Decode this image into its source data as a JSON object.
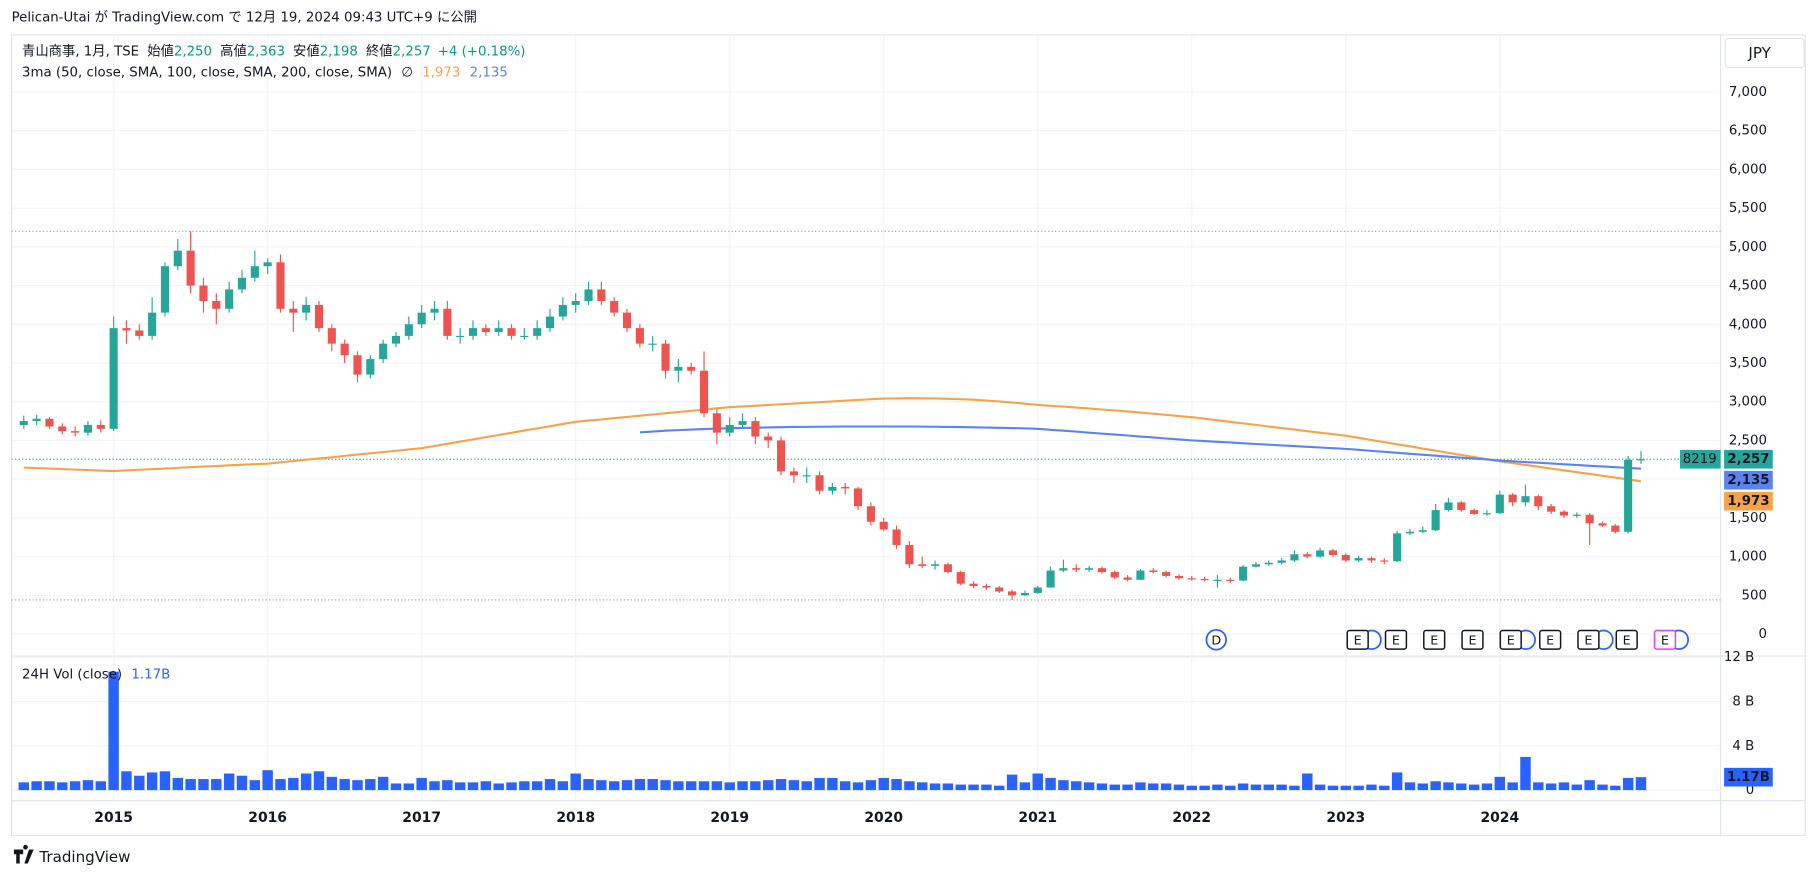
{
  "header": "Pelican-Utai が TradingView.com で 12月 19, 2024 09:43 UTC+9 に公開",
  "footer": "TradingView",
  "chart_data": [
    {
      "type": "candlestick",
      "symbol": "青山商事, 1月, TSE",
      "ohlc_names": [
        "始値",
        "高値",
        "安値",
        "終値"
      ],
      "ohlc_value_labels": [
        "2,250",
        "2,363",
        "2,198",
        "2,257"
      ],
      "change": "+4 (+0.18%)",
      "currency": "JPY",
      "badge_prefix": "8219",
      "indicator": "3ma (50, close, SMA, 100, close, SMA, 200, close, SMA)",
      "ma_empty_label": "∅",
      "events": [
        "D",
        "E",
        "E",
        "E",
        "E",
        "E",
        "E",
        "E",
        "E",
        "E"
      ],
      "up_color": "#26a69a",
      "down_color": "#ef5350",
      "categories": [
        null,
        null,
        null,
        null,
        null,
        null,
        null,
        "2015",
        null,
        null,
        null,
        null,
        null,
        null,
        null,
        null,
        null,
        null,
        null,
        "2016",
        null,
        null,
        null,
        null,
        null,
        null,
        null,
        null,
        null,
        null,
        null,
        "2017",
        null,
        null,
        null,
        null,
        null,
        null,
        null,
        null,
        null,
        null,
        null,
        "2018",
        null,
        null,
        null,
        null,
        null,
        null,
        null,
        null,
        null,
        null,
        null,
        "2019",
        null,
        null,
        null,
        null,
        null,
        null,
        null,
        null,
        null,
        null,
        null,
        "2020",
        null,
        null,
        null,
        null,
        null,
        null,
        null,
        null,
        null,
        null,
        null,
        "2021",
        null,
        null,
        null,
        null,
        null,
        null,
        null,
        null,
        null,
        null,
        null,
        "2022",
        null,
        null,
        null,
        null,
        null,
        null,
        null,
        null,
        null,
        null,
        null,
        "2023",
        null,
        null,
        null,
        null,
        null,
        null,
        null,
        null,
        null,
        null,
        null,
        "2024",
        null,
        null,
        null,
        null,
        null,
        null,
        null,
        null,
        null,
        null,
        null
      ],
      "open": [
        2700,
        2750,
        2780,
        2680,
        2620,
        2600,
        2700,
        2650,
        3950,
        3920,
        3850,
        4150,
        4750,
        4950,
        4500,
        4300,
        4200,
        4450,
        4600,
        4750,
        4800,
        4200,
        4150,
        4250,
        3950,
        3750,
        3600,
        3350,
        3550,
        3750,
        3850,
        4000,
        4150,
        4200,
        3850,
        3850,
        3950,
        3900,
        3950,
        3850,
        3850,
        3950,
        4100,
        4250,
        4300,
        4450,
        4300,
        4150,
        3950,
        3750,
        3750,
        3400,
        3450,
        3400,
        2850,
        2600,
        2700,
        2750,
        2550,
        2500,
        2100,
        2050,
        2050,
        1850,
        1900,
        1880,
        1650,
        1450,
        1350,
        1150,
        900,
        880,
        900,
        800,
        650,
        620,
        600,
        550,
        500,
        530,
        600,
        820,
        850,
        830,
        850,
        800,
        730,
        700,
        820,
        800,
        750,
        720,
        710,
        700,
        700,
        690,
        870,
        900,
        920,
        950,
        1030,
        1000,
        1080,
        1020,
        950,
        980,
        950,
        940,
        1300,
        1320,
        1340,
        1600,
        1700,
        1600,
        1550,
        1560,
        1800,
        1700,
        1780,
        1650,
        1580,
        1530,
        1540,
        1430,
        1400,
        1320,
        2250
      ],
      "high": [
        2820,
        2830,
        2800,
        2720,
        2680,
        2750,
        2760,
        4100,
        4050,
        4000,
        4350,
        4800,
        5100,
        5200,
        4600,
        4400,
        4550,
        4700,
        4950,
        4850,
        4900,
        4300,
        4350,
        4300,
        4000,
        3800,
        3650,
        3600,
        3800,
        3900,
        4100,
        4250,
        4300,
        4300,
        3950,
        4050,
        4000,
        4050,
        4000,
        3950,
        4050,
        4200,
        4350,
        4400,
        4550,
        4550,
        4350,
        4200,
        4000,
        3850,
        3800,
        3550,
        3500,
        3650,
        2900,
        2800,
        2850,
        2800,
        2600,
        2550,
        2150,
        2150,
        2100,
        1950,
        1950,
        1900,
        1700,
        1500,
        1400,
        1200,
        1000,
        950,
        920,
        820,
        680,
        650,
        620,
        570,
        560,
        620,
        870,
        960,
        900,
        880,
        870,
        820,
        760,
        840,
        850,
        820,
        770,
        750,
        740,
        760,
        730,
        890,
        930,
        950,
        980,
        1080,
        1060,
        1110,
        1100,
        1040,
        1010,
        1000,
        980,
        1330,
        1360,
        1390,
        1680,
        1760,
        1720,
        1620,
        1600,
        1850,
        1820,
        1930,
        1800,
        1680,
        1600,
        1570,
        1560,
        1450,
        1420,
        2300,
        2363
      ],
      "low": [
        2650,
        2700,
        2650,
        2580,
        2550,
        2560,
        2600,
        2620,
        3750,
        3800,
        3800,
        4100,
        4700,
        4400,
        4150,
        4000,
        4150,
        4400,
        4550,
        4650,
        4150,
        3900,
        4050,
        3900,
        3650,
        3500,
        3250,
        3300,
        3500,
        3700,
        3800,
        3950,
        4050,
        3800,
        3750,
        3800,
        3850,
        3850,
        3800,
        3800,
        3800,
        3900,
        4050,
        4150,
        4250,
        4250,
        4100,
        3900,
        3700,
        3650,
        3300,
        3250,
        3350,
        2800,
        2450,
        2550,
        2650,
        2450,
        2400,
        2050,
        1950,
        1950,
        1800,
        1800,
        1800,
        1600,
        1400,
        1330,
        1100,
        850,
        850,
        830,
        780,
        630,
        590,
        570,
        530,
        440,
        490,
        520,
        600,
        800,
        800,
        800,
        780,
        710,
        680,
        700,
        780,
        730,
        700,
        690,
        680,
        600,
        660,
        680,
        860,
        880,
        900,
        930,
        980,
        980,
        1000,
        930,
        930,
        920,
        900,
        930,
        1280,
        1300,
        1330,
        1580,
        1580,
        1540,
        1530,
        1550,
        1650,
        1650,
        1600,
        1550,
        1500,
        1500,
        1150,
        1380,
        1300,
        1300,
        2198
      ],
      "close": [
        2750,
        2780,
        2680,
        2620,
        2600,
        2700,
        2650,
        3950,
        3920,
        3850,
        4150,
        4750,
        4950,
        4500,
        4300,
        4200,
        4450,
        4600,
        4750,
        4800,
        4200,
        4150,
        4250,
        3950,
        3750,
        3600,
        3350,
        3550,
        3750,
        3850,
        4000,
        4150,
        4200,
        3850,
        3850,
        3950,
        3900,
        3950,
        3850,
        3850,
        3950,
        4100,
        4250,
        4300,
        4450,
        4300,
        4150,
        3950,
        3750,
        3750,
        3400,
        3450,
        3400,
        2850,
        2600,
        2700,
        2750,
        2550,
        2500,
        2100,
        2050,
        2050,
        1850,
        1900,
        1880,
        1650,
        1450,
        1350,
        1150,
        900,
        880,
        900,
        800,
        650,
        620,
        600,
        550,
        500,
        530,
        600,
        820,
        850,
        830,
        850,
        800,
        730,
        700,
        820,
        800,
        750,
        720,
        710,
        700,
        700,
        690,
        870,
        900,
        920,
        950,
        1030,
        1000,
        1080,
        1020,
        950,
        980,
        950,
        940,
        1300,
        1320,
        1340,
        1600,
        1700,
        1600,
        1550,
        1560,
        1800,
        1700,
        1780,
        1650,
        1580,
        1530,
        1540,
        1430,
        1400,
        1320,
        2250,
        2257
      ],
      "ma_series": [
        {
          "color": "#f7a24b",
          "value_label": "1,973",
          "values": [
            2150,
            2143,
            2137,
            2130,
            2123,
            2117,
            2110,
            2105,
            2113,
            2121,
            2129,
            2137,
            2146,
            2154,
            2162,
            2170,
            2178,
            2186,
            2194,
            2200,
            2217,
            2233,
            2250,
            2267,
            2283,
            2300,
            2317,
            2333,
            2350,
            2367,
            2383,
            2400,
            2428,
            2457,
            2485,
            2513,
            2542,
            2570,
            2598,
            2627,
            2655,
            2683,
            2712,
            2740,
            2756,
            2772,
            2788,
            2803,
            2819,
            2835,
            2851,
            2866,
            2882,
            2898,
            2914,
            2930,
            2939,
            2948,
            2958,
            2967,
            2976,
            2985,
            2994,
            3003,
            3013,
            3022,
            3031,
            3040,
            3043,
            3045,
            3044,
            3042,
            3038,
            3032,
            3025,
            3015,
            3003,
            2990,
            2975,
            2960,
            2948,
            2937,
            2925,
            2913,
            2900,
            2887,
            2873,
            2860,
            2845,
            2830,
            2815,
            2800,
            2780,
            2760,
            2740,
            2720,
            2700,
            2680,
            2660,
            2640,
            2620,
            2600,
            2580,
            2560,
            2533,
            2505,
            2478,
            2450,
            2423,
            2395,
            2368,
            2340,
            2313,
            2285,
            2258,
            2230,
            2207,
            2183,
            2160,
            2137,
            2113,
            2090,
            2067,
            2043,
            2020,
            1997,
            1973
          ]
        },
        {
          "color": "#5b83f0",
          "value_label": "2,135",
          "values": [
            null,
            null,
            null,
            null,
            null,
            null,
            null,
            null,
            null,
            null,
            null,
            null,
            null,
            null,
            null,
            null,
            null,
            null,
            null,
            null,
            null,
            null,
            null,
            null,
            null,
            null,
            null,
            null,
            null,
            null,
            null,
            null,
            null,
            null,
            null,
            null,
            null,
            null,
            null,
            null,
            null,
            null,
            null,
            null,
            null,
            null,
            null,
            null,
            2605,
            2615,
            2625,
            2633,
            2640,
            2647,
            2652,
            2657,
            2661,
            2665,
            2668,
            2671,
            2673,
            2675,
            2677,
            2678,
            2679,
            2680,
            2680,
            2680,
            2680,
            2679,
            2678,
            2676,
            2674,
            2672,
            2669,
            2666,
            2663,
            2660,
            2656,
            2650,
            2638,
            2625,
            2613,
            2600,
            2588,
            2575,
            2563,
            2550,
            2538,
            2525,
            2513,
            2500,
            2491,
            2482,
            2473,
            2463,
            2454,
            2445,
            2436,
            2427,
            2418,
            2408,
            2399,
            2390,
            2378,
            2365,
            2353,
            2340,
            2328,
            2315,
            2303,
            2290,
            2278,
            2265,
            2253,
            2240,
            2230,
            2221,
            2211,
            2202,
            2192,
            2183,
            2173,
            2164,
            2154,
            2145,
            2135
          ]
        }
      ],
      "ylim": [
        -270,
        7736
      ],
      "yticks": [
        0,
        500,
        {
          "value": 1000,
          "label": "1,000"
        },
        {
          "value": 1500,
          "label": "1,500"
        },
        {
          "value": 2000,
          "label": "2,000"
        },
        {
          "value": 2500,
          "label": "2,500"
        },
        {
          "value": 3000,
          "label": "3,000"
        },
        {
          "value": 3500,
          "label": "3,500"
        },
        {
          "value": 4000,
          "label": "4,000"
        },
        {
          "value": 4500,
          "label": "4,500"
        },
        {
          "value": 5000,
          "label": "5,000"
        },
        {
          "value": 5500,
          "label": "5,500"
        },
        {
          "value": 6000,
          "label": "6,000"
        },
        {
          "value": 6500,
          "label": "6,500"
        },
        {
          "value": 7000,
          "label": "7,000"
        }
      ],
      "grid": true
    },
    {
      "type": "bar",
      "title": "24H Vol (close)",
      "last_value_label": "1.17B",
      "color": "#2962ff",
      "values": [
        0.7,
        0.8,
        0.8,
        0.7,
        0.8,
        0.9,
        0.8,
        10.7,
        1.7,
        1.3,
        1.6,
        1.7,
        1.1,
        1.0,
        1.0,
        1.0,
        1.5,
        1.3,
        0.9,
        1.8,
        1.0,
        1.1,
        1.5,
        1.7,
        1.2,
        1.0,
        0.9,
        1.0,
        1.2,
        0.6,
        0.6,
        1.1,
        0.8,
        0.9,
        0.7,
        0.7,
        0.8,
        0.6,
        0.7,
        0.8,
        0.8,
        1.0,
        0.8,
        1.5,
        1.0,
        0.9,
        0.8,
        0.9,
        1.0,
        1.0,
        0.9,
        0.8,
        0.8,
        0.8,
        0.8,
        0.7,
        0.8,
        0.8,
        0.9,
        1.0,
        0.9,
        0.8,
        1.1,
        1.1,
        0.8,
        0.7,
        0.9,
        1.1,
        1.0,
        0.8,
        0.7,
        0.6,
        0.6,
        0.5,
        0.5,
        0.5,
        0.4,
        1.4,
        0.7,
        1.5,
        1.1,
        0.9,
        0.8,
        0.7,
        0.6,
        0.5,
        0.5,
        0.7,
        0.6,
        0.6,
        0.5,
        0.4,
        0.4,
        0.5,
        0.4,
        0.6,
        0.5,
        0.5,
        0.5,
        0.4,
        1.5,
        0.5,
        0.4,
        0.4,
        0.4,
        0.5,
        0.4,
        1.6,
        0.7,
        0.6,
        0.8,
        0.7,
        0.6,
        0.5,
        0.6,
        1.2,
        0.7,
        3.0,
        0.7,
        0.6,
        0.7,
        0.5,
        0.9,
        0.5,
        0.4,
        1.1,
        1.17
      ],
      "ylim": [
        -0.84,
        12.0
      ],
      "yticks": [
        0,
        {
          "value": 4,
          "label": "4 B"
        },
        {
          "value": 8,
          "label": "8 B"
        },
        {
          "value": 12,
          "label": "12 B"
        }
      ]
    }
  ]
}
